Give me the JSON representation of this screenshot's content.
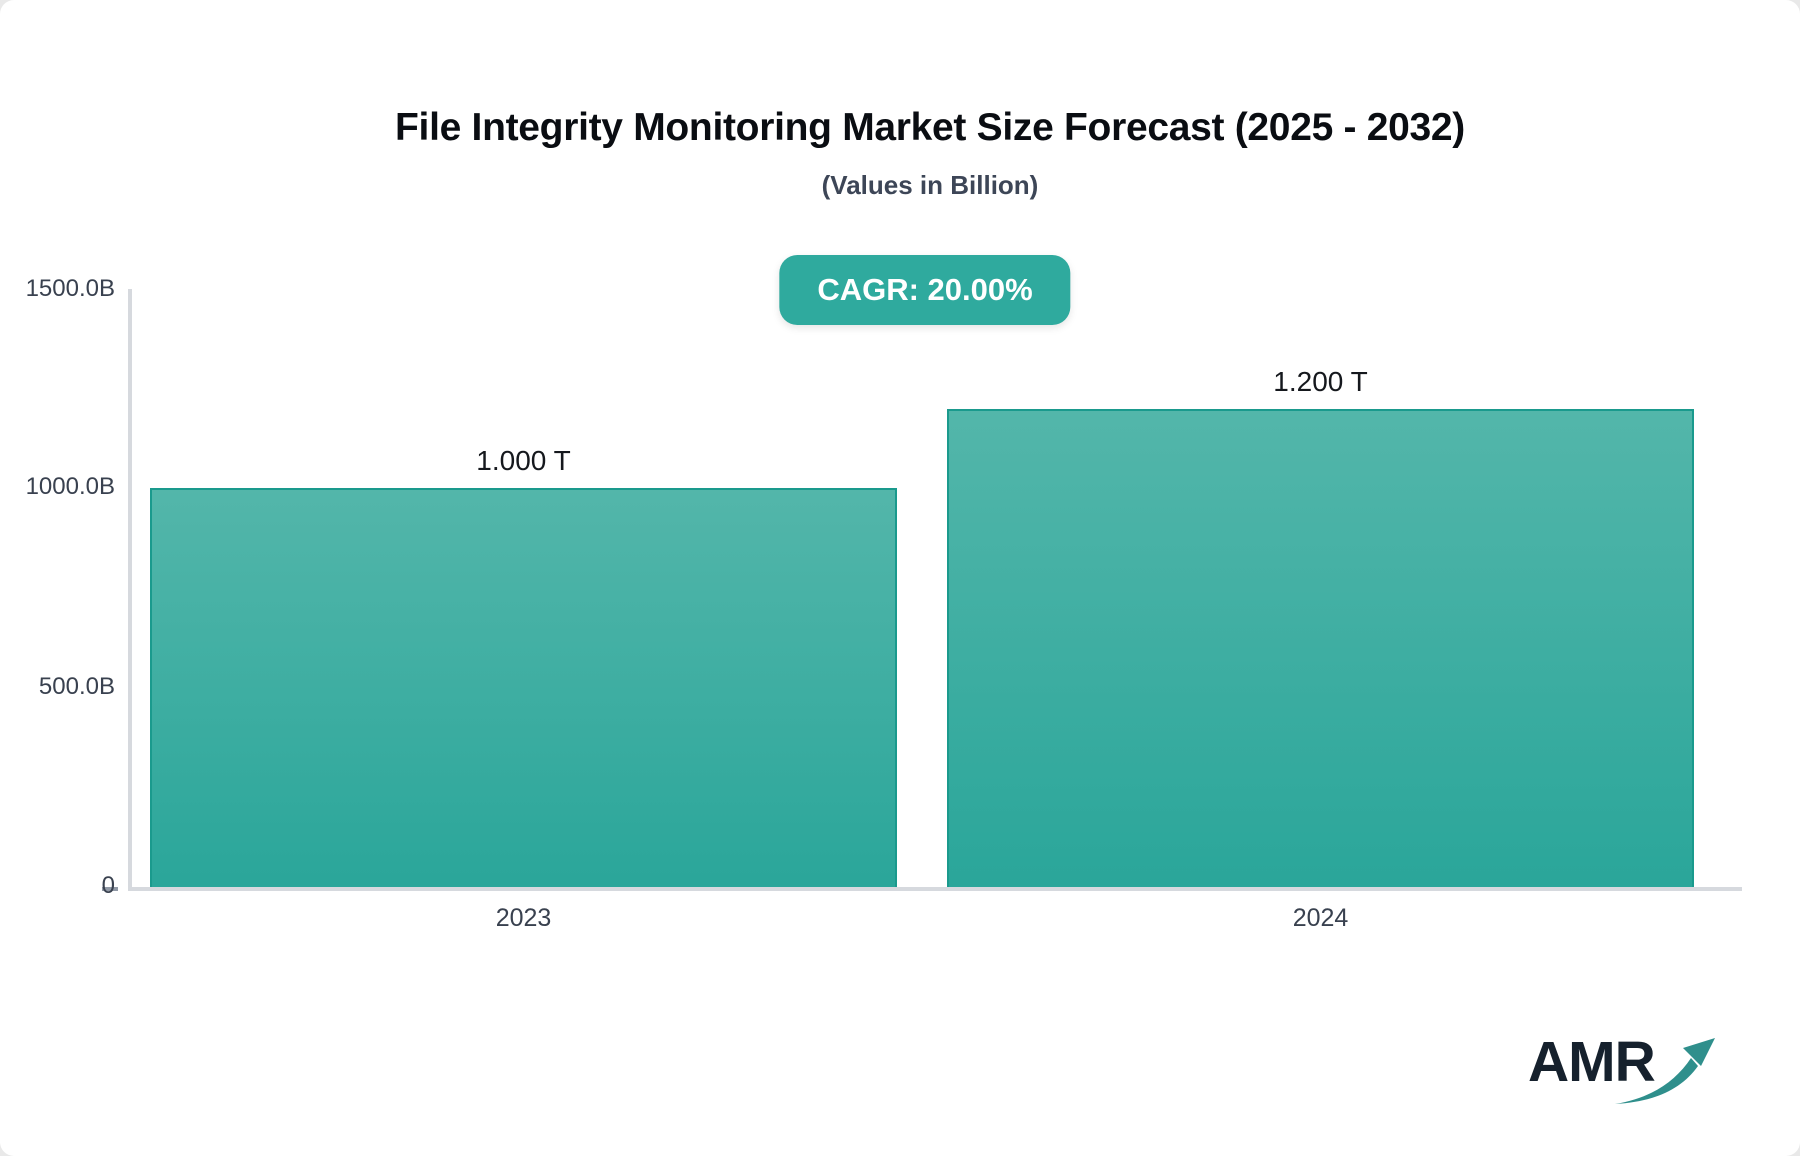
{
  "chart_data": {
    "type": "bar",
    "title": "File Integrity Monitoring Market Size Forecast (2025 - 2032)",
    "subtitle": "(Values in Billion)",
    "cagr_badge": "CAGR: 20.00%",
    "categories": [
      "2023",
      "2024"
    ],
    "values_billion": [
      1000,
      1200
    ],
    "bar_labels": [
      "1.000 T",
      "1.200 T"
    ],
    "ylabel": "",
    "xlabel": "",
    "ylim": [
      0,
      1500
    ],
    "y_ticks": [
      "1500.0B",
      "1000.0B",
      "500.0B",
      "0"
    ],
    "grid": false,
    "legend": false,
    "colors": {
      "badge_bg": "#2faa9e",
      "bar_gradient_top": "#53b6aa",
      "bar_gradient_bottom": "#2aa69a",
      "bar_border": "#1a9a8d",
      "axis_line": "#d6d9de",
      "label_text": "#39414f",
      "title_text": "#0a0d12"
    }
  },
  "logo": {
    "text": "AMR",
    "arrow_icon": "growth-arrow-icon"
  }
}
